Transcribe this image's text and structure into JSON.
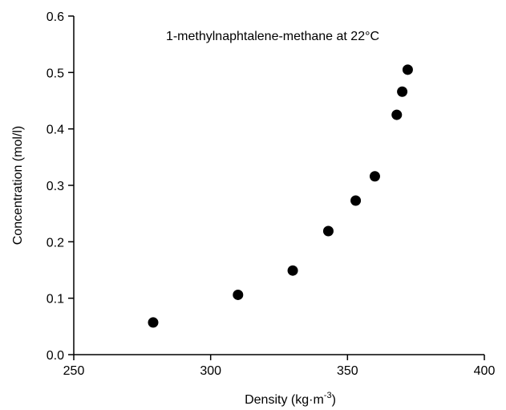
{
  "chart_data": {
    "type": "scatter",
    "title": "",
    "annotation": "1-methylnaphtalene-methane at 22°C",
    "xlabel_main": "Density  (kg·m",
    "xlabel_sup": "-3",
    "xlabel_tail": ")",
    "ylabel": "Concentration (mol/l)",
    "xlim": [
      250,
      400
    ],
    "ylim": [
      0.0,
      0.6
    ],
    "x_ticks": [
      250,
      300,
      350,
      400
    ],
    "x_tick_labels": [
      "250",
      "300",
      "350",
      "400"
    ],
    "y_ticks": [
      0.0,
      0.1,
      0.2,
      0.3,
      0.4,
      0.5,
      0.6
    ],
    "y_tick_labels": [
      "0.0",
      "0.1",
      "0.2",
      "0.3",
      "0.4",
      "0.5",
      "0.6"
    ],
    "grid": false,
    "marker_color": "#000000",
    "series": [
      {
        "x": [
          279,
          310,
          330,
          343,
          353,
          360,
          368,
          370,
          372
        ],
        "y": [
          0.057,
          0.106,
          0.149,
          0.219,
          0.273,
          0.316,
          0.425,
          0.466,
          0.505
        ]
      }
    ]
  }
}
